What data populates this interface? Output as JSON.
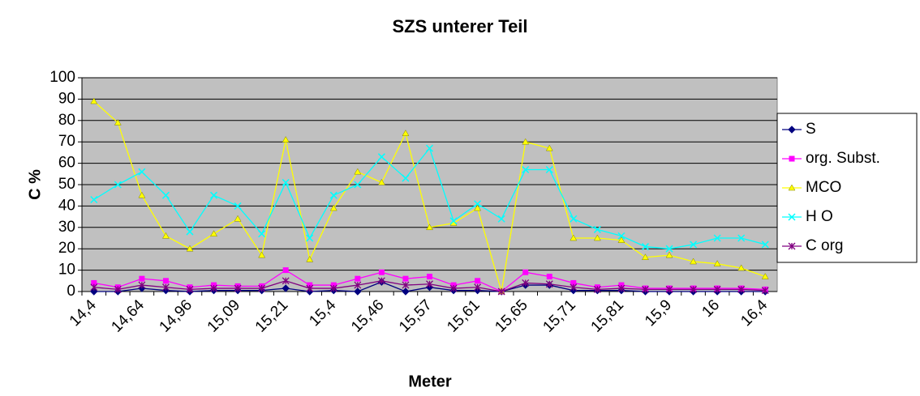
{
  "chart_data": {
    "type": "line",
    "title": "SZS unterer Teil",
    "x_label": "Meter",
    "y_label": "C %",
    "categories": [
      "14,4",
      null,
      "14,64",
      null,
      "14,96",
      null,
      "15,09",
      null,
      "15,21",
      null,
      "15,4",
      null,
      "15,46",
      null,
      "15,57",
      null,
      "15,61",
      null,
      "15,65",
      null,
      "15,71",
      null,
      "15,81",
      null,
      "15,9",
      null,
      "16",
      null,
      "16,4"
    ],
    "ylim": [
      0,
      100
    ],
    "yticks": [
      0,
      10,
      20,
      30,
      40,
      50,
      60,
      70,
      80,
      90,
      100
    ],
    "grid": true,
    "legend": "right",
    "series": [
      {
        "name": "S",
        "color": "#000080",
        "marker": "diamond",
        "values": [
          0,
          0,
          1.5,
          0.5,
          0,
          0.5,
          0.5,
          0.5,
          1.5,
          0,
          0.5,
          0,
          4.5,
          0,
          2,
          0.5,
          0.5,
          0,
          3,
          3,
          0.5,
          0.5,
          0.5,
          0,
          0,
          0,
          0,
          0,
          0
        ]
      },
      {
        "name": "org. Subst.",
        "color": "#ff00ff",
        "marker": "square",
        "values": [
          4,
          2,
          6,
          5,
          2,
          3,
          2.5,
          2.5,
          10,
          3,
          3,
          6,
          9,
          6,
          7,
          3,
          5,
          0,
          9,
          7,
          4,
          2,
          3,
          1.5,
          1.5,
          1.5,
          1.5,
          1.5,
          1
        ]
      },
      {
        "name": "MCO",
        "color": "#ffff00",
        "marker": "triangle",
        "values": [
          89,
          79,
          45,
          26,
          20,
          27,
          34,
          17,
          71,
          15,
          39,
          56,
          51,
          74,
          30,
          32,
          39,
          0,
          70,
          67,
          25,
          25,
          24,
          16,
          17,
          14,
          13,
          11,
          7
        ]
      },
      {
        "name": "H O",
        "color": "#00ffff",
        "marker": "x",
        "values": [
          43,
          50,
          56,
          45,
          28,
          45,
          40,
          27,
          51,
          25,
          45,
          50,
          63,
          53,
          67,
          33,
          41,
          34,
          57,
          57,
          34,
          29,
          26,
          21,
          20,
          22,
          25,
          25,
          22
        ]
      },
      {
        "name": "C org",
        "color": "#800080",
        "marker": "star",
        "values": [
          2,
          1,
          3,
          2,
          1,
          1.5,
          1.5,
          1.5,
          5,
          1.5,
          1.5,
          3,
          5,
          3,
          3.5,
          1.5,
          2,
          0,
          4,
          3.5,
          2,
          1,
          1.5,
          1,
          1,
          1,
          1,
          1,
          0.5
        ]
      }
    ]
  }
}
